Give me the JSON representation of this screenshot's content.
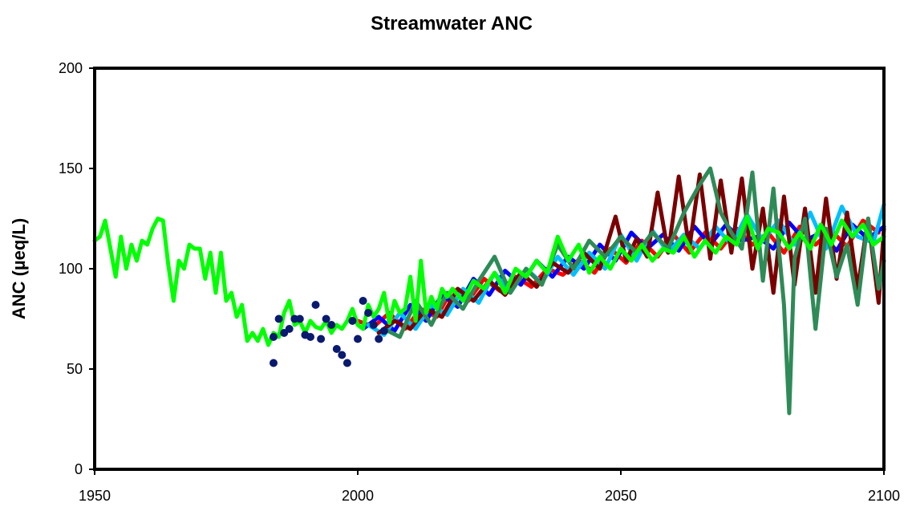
{
  "chart_data": {
    "type": "line",
    "title": "Streamwater ANC",
    "xlabel": "",
    "ylabel": "ANC (µeq/L)",
    "xlim": [
      1950,
      2100
    ],
    "ylim": [
      0,
      200
    ],
    "xticks": [
      1950,
      2000,
      2050,
      2100
    ],
    "yticks": [
      0,
      50,
      100,
      150,
      200
    ],
    "grid": false,
    "legend": "none",
    "series": [
      {
        "type": "scatter",
        "color": "#0a1a6e",
        "points": [
          [
            1984,
            53
          ],
          [
            1984,
            66
          ],
          [
            1985,
            75
          ],
          [
            1986,
            68
          ],
          [
            1987,
            70
          ],
          [
            1988,
            75
          ],
          [
            1989,
            75
          ],
          [
            1990,
            67
          ],
          [
            1991,
            66
          ],
          [
            1992,
            82
          ],
          [
            1993,
            65
          ],
          [
            1994,
            75
          ],
          [
            1995,
            72
          ],
          [
            1996,
            60
          ],
          [
            1997,
            57
          ],
          [
            1998,
            53
          ],
          [
            1999,
            74
          ],
          [
            2000,
            65
          ],
          [
            2001,
            84
          ],
          [
            2002,
            78
          ],
          [
            2003,
            72
          ],
          [
            2004,
            65
          ],
          [
            2005,
            69
          ]
        ]
      },
      {
        "type": "line",
        "color": "#ff0000",
        "x": [
          2000,
          2003,
          2006,
          2009,
          2012,
          2015,
          2018,
          2021,
          2024,
          2027,
          2030,
          2033,
          2036,
          2039,
          2042,
          2045,
          2048,
          2051,
          2054,
          2057,
          2060,
          2063,
          2066,
          2069,
          2072,
          2075,
          2078,
          2081,
          2084,
          2087,
          2090,
          2093,
          2096,
          2099
        ],
        "y": [
          74,
          71,
          78,
          70,
          80,
          76,
          90,
          84,
          95,
          89,
          96,
          91,
          100,
          97,
          104,
          98,
          110,
          103,
          114,
          106,
          117,
          108,
          118,
          110,
          120,
          112,
          118,
          108,
          121,
          112,
          119,
          111,
          124,
          118
        ]
      },
      {
        "type": "line",
        "color": "#0000ff",
        "x": [
          2001,
          2004,
          2007,
          2010,
          2013,
          2016,
          2019,
          2022,
          2025,
          2028,
          2031,
          2034,
          2037,
          2040,
          2043,
          2046,
          2049,
          2052,
          2055,
          2058,
          2061,
          2064,
          2067,
          2070,
          2073,
          2076,
          2079,
          2082,
          2085,
          2088,
          2091,
          2094,
          2097,
          2100
        ],
        "y": [
          70,
          76,
          69,
          82,
          74,
          87,
          81,
          95,
          87,
          99,
          92,
          104,
          96,
          106,
          100,
          112,
          104,
          118,
          110,
          117,
          109,
          121,
          112,
          122,
          114,
          116,
          110,
          123,
          114,
          118,
          109,
          122,
          115,
          121
        ]
      },
      {
        "type": "line",
        "color": "#00bfff",
        "x": [
          2002,
          2005,
          2008,
          2011,
          2014,
          2017,
          2020,
          2023,
          2026,
          2029,
          2032,
          2035,
          2038,
          2041,
          2044,
          2047,
          2050,
          2053,
          2056,
          2059,
          2062,
          2065,
          2068,
          2071,
          2074,
          2077,
          2080,
          2083,
          2086,
          2089,
          2092,
          2095,
          2098,
          2100
        ],
        "y": [
          72,
          67,
          78,
          70,
          82,
          77,
          90,
          83,
          98,
          88,
          100,
          93,
          106,
          97,
          108,
          100,
          117,
          104,
          119,
          108,
          117,
          110,
          121,
          112,
          127,
          114,
          124,
          112,
          128,
          110,
          131,
          116,
          113,
          132
        ]
      },
      {
        "type": "line",
        "color": "#7a0000",
        "x": [
          2004,
          2007,
          2010,
          2013,
          2016,
          2019,
          2022,
          2025,
          2028,
          2031,
          2034,
          2037,
          2040,
          2043,
          2046,
          2049,
          2051,
          2053,
          2055,
          2057,
          2059,
          2061,
          2063,
          2065,
          2067,
          2069,
          2071,
          2073,
          2075,
          2077,
          2079,
          2081,
          2083,
          2085,
          2087,
          2089,
          2091,
          2093,
          2095,
          2097,
          2099,
          2100
        ],
        "y": [
          68,
          74,
          70,
          80,
          76,
          90,
          84,
          94,
          87,
          98,
          91,
          103,
          98,
          108,
          100,
          126,
          104,
          115,
          106,
          138,
          108,
          146,
          110,
          147,
          105,
          144,
          108,
          145,
          100,
          130,
          88,
          136,
          92,
          130,
          88,
          135,
          95,
          128,
          90,
          125,
          83,
          120
        ]
      },
      {
        "type": "line",
        "color": "#2e8b57",
        "x": [
          2005,
          2008,
          2011,
          2014,
          2017,
          2020,
          2023,
          2026,
          2029,
          2032,
          2035,
          2038,
          2041,
          2044,
          2047,
          2050,
          2053,
          2056,
          2059,
          2062,
          2065,
          2067,
          2069,
          2071,
          2073,
          2075,
          2077,
          2079,
          2081,
          2082,
          2083,
          2085,
          2087,
          2089,
          2091,
          2093,
          2095,
          2097,
          2099,
          2100
        ],
        "y": [
          70,
          66,
          84,
          72,
          88,
          80,
          94,
          106,
          88,
          100,
          92,
          112,
          100,
          114,
          106,
          116,
          108,
          118,
          110,
          128,
          142,
          150,
          128,
          118,
          110,
          148,
          94,
          140,
          82,
          28,
          105,
          125,
          70,
          120,
          96,
          112,
          82,
          125,
          90,
          104
        ]
      },
      {
        "type": "line",
        "color": "#00ff00",
        "x": [
          1950,
          1951,
          1952,
          1953,
          1954,
          1955,
          1956,
          1957,
          1958,
          1959,
          1960,
          1961,
          1962,
          1963,
          1964,
          1965,
          1966,
          1967,
          1968,
          1969,
          1970,
          1971,
          1972,
          1973,
          1974,
          1975,
          1976,
          1977,
          1978,
          1979,
          1980,
          1981,
          1982,
          1983,
          1984,
          1985,
          1986,
          1987,
          1988,
          1989,
          1990,
          1991,
          1992,
          1993,
          1994,
          1995,
          1996,
          1997,
          1998,
          1999,
          2000,
          2001,
          2002,
          2003,
          2004,
          2005,
          2006,
          2007,
          2008,
          2009,
          2010,
          2011,
          2012,
          2013,
          2014,
          2015,
          2016,
          2017,
          2018,
          2020,
          2022,
          2024,
          2026,
          2028,
          2030,
          2032,
          2034,
          2036,
          2038,
          2040,
          2042,
          2044,
          2046,
          2048,
          2050,
          2052,
          2054,
          2056,
          2058,
          2060,
          2062,
          2064,
          2066,
          2068,
          2070,
          2072,
          2074,
          2076,
          2078,
          2080,
          2082,
          2084,
          2086,
          2088,
          2090,
          2092,
          2094,
          2096,
          2098,
          2100
        ],
        "y": [
          114,
          116,
          124,
          110,
          96,
          116,
          100,
          112,
          104,
          114,
          112,
          120,
          125,
          124,
          102,
          84,
          104,
          100,
          112,
          110,
          110,
          95,
          108,
          88,
          108,
          84,
          88,
          76,
          82,
          64,
          68,
          64,
          70,
          62,
          68,
          66,
          78,
          84,
          72,
          74,
          68,
          74,
          71,
          70,
          74,
          68,
          72,
          70,
          74,
          80,
          72,
          70,
          82,
          76,
          80,
          88,
          73,
          84,
          78,
          80,
          96,
          74,
          104,
          78,
          86,
          80,
          90,
          86,
          90,
          84,
          94,
          90,
          98,
          88,
          100,
          96,
          104,
          98,
          116,
          104,
          112,
          98,
          106,
          100,
          110,
          104,
          112,
          104,
          110,
          108,
          116,
          106,
          114,
          108,
          116,
          112,
          126,
          110,
          120,
          118,
          110,
          118,
          110,
          122,
          112,
          124,
          116,
          122,
          112,
          116
        ]
      }
    ]
  }
}
